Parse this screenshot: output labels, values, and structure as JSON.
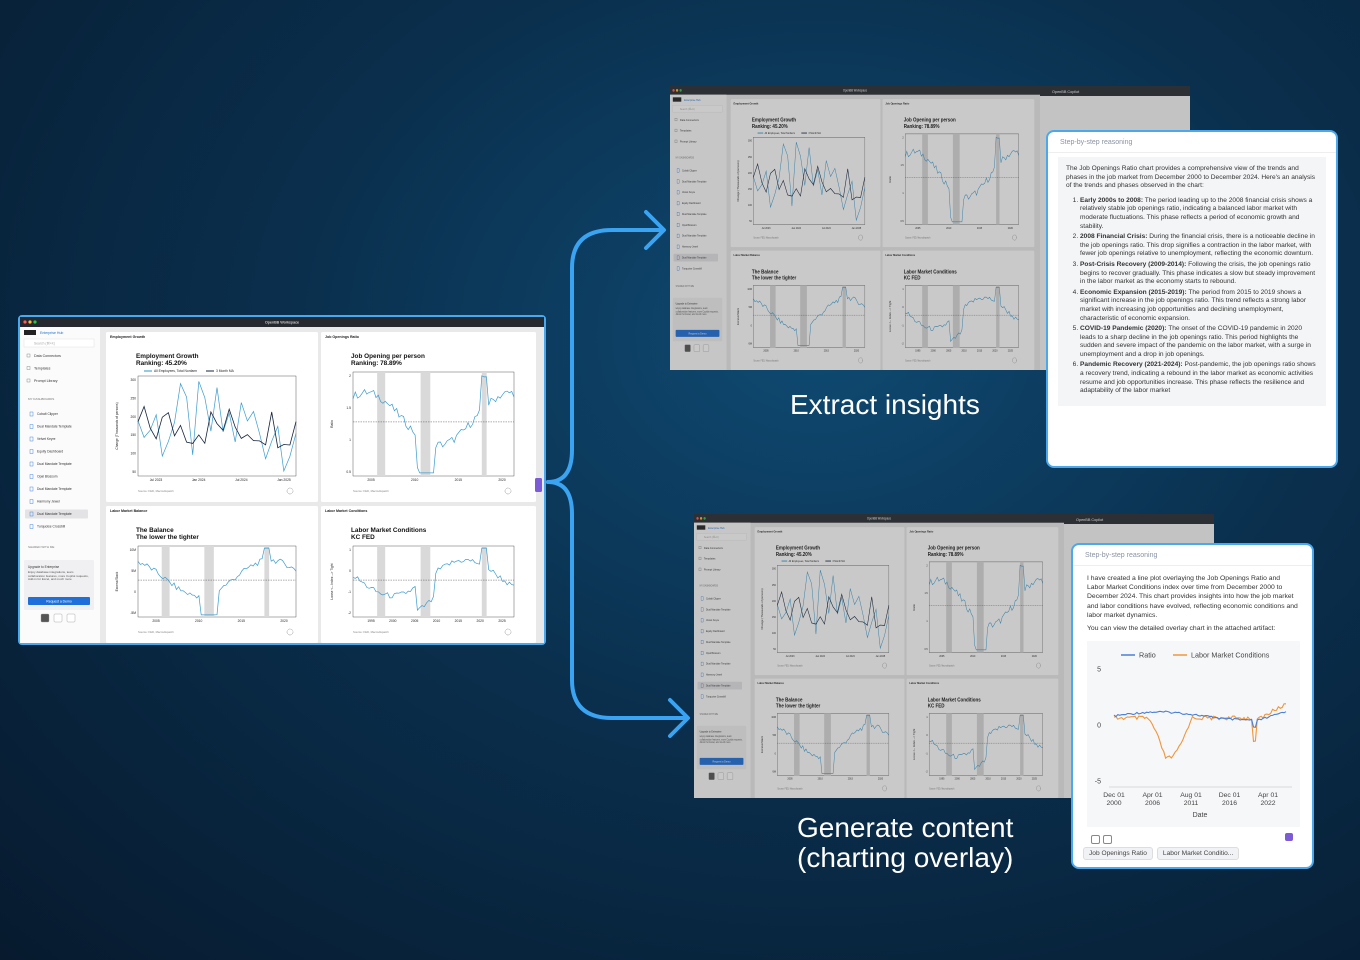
{
  "main_window": {
    "title": "OpenBB Workspace",
    "sidebar": {
      "workspace": "Enterprise Hub",
      "search": "Search (⌘+K)",
      "nav": [
        "Data Connectors",
        "Templates",
        "Prompt Library"
      ],
      "section": "MY DASHBOARDS",
      "dashboards": [
        "Cobalt Clipper",
        "Dual Mandate Template",
        "Velvet Keyre",
        "Equity Dashboard",
        "Dual Mandate Template",
        "Opal Blossom",
        "Dual Mandate Template",
        "Harmony Jewel",
        "Dual Mandate Template",
        "Turquoise Crossbill"
      ],
      "shared": "SHARED WITH ME",
      "upgrade_title": "Upgrade to Enterprise",
      "upgrade_text": "Enjoy database integrations, team collaboration features, more Copilot requests, Add-in for Excel, and much more",
      "button": "Request a Demo"
    },
    "widgets": [
      {
        "header": "Employment Growth",
        "title": "Employment Growth",
        "subtitle": "Ranking: 45.20%",
        "legend": [
          "All Employees, Total Nonfarm",
          "3 Month MA"
        ],
        "ylabel": "Change (Thousands of persons)",
        "xticks": [
          "Jul 2023",
          "Jan 2024",
          "Jul 2024",
          "Jan 2025"
        ],
        "yticks": [
          "300",
          "250",
          "200",
          "150",
          "100",
          "50"
        ],
        "source": "Source: FED, Macrodispatch"
      },
      {
        "header": "Job Openings Ratio",
        "title": "Job Opening per person",
        "subtitle": "Ranking: 78.89%",
        "ylabel": "Ratio",
        "xticks": [
          "2005",
          "2010",
          "2015",
          "2020"
        ],
        "yticks": [
          "2",
          "1.5",
          "1",
          "0.5"
        ],
        "source": "Source: FED, Macrodispatch"
      },
      {
        "header": "Labor Market Balance",
        "title": "The Balance",
        "subtitle": "The lower the tighter",
        "ylabel": "Excess/Slack",
        "xticks": [
          "2005",
          "2010",
          "2015",
          "2020"
        ],
        "yticks": [
          "10M",
          "5M",
          "0",
          "-5M"
        ],
        "source": "Source: FED, Macrodispatch"
      },
      {
        "header": "Labor Market Conditions",
        "title": "Labor Market Conditions",
        "subtitle": "KC FED",
        "ylabel": "Loose <-- Index --> Tight",
        "xticks": [
          "1995",
          "2000",
          "2005",
          "2010",
          "2015",
          "2020",
          "2025"
        ],
        "yticks": [
          "1",
          "0",
          "-1",
          "-2"
        ],
        "source": "Source: FED, Macrodispatch"
      }
    ]
  },
  "copilot": {
    "title": "OpenBB Copilot"
  },
  "insights_card": {
    "header": "Step-by-step reasoning",
    "intro": "The Job Openings Ratio chart provides a comprehensive view of the trends and phases in the job market from December 2000 to December 2024. Here's an analysis of the trends and phases observed in the chart:",
    "items": [
      {
        "title": "Early 2000s to 2008:",
        "text": "The period leading up to the 2008 financial crisis shows a relatively stable job openings ratio, indicating a balanced labor market with moderate fluctuations. This phase reflects a period of economic growth and stability."
      },
      {
        "title": "2008 Financial Crisis:",
        "text": "During the financial crisis, there is a noticeable decline in the job openings ratio. This drop signifies a contraction in the labor market, with fewer job openings relative to unemployment, reflecting the economic downturn."
      },
      {
        "title": "Post-Crisis Recovery (2009-2014):",
        "text": "Following the crisis, the job openings ratio begins to recover gradually. This phase indicates a slow but steady improvement in the labor market as the economy starts to rebound."
      },
      {
        "title": "Economic Expansion (2015-2019):",
        "text": "The period from 2015 to 2019 shows a significant increase in the job openings ratio. This trend reflects a strong labor market with increasing job opportunities and declining unemployment, characteristic of economic expansion."
      },
      {
        "title": "COVID-19 Pandemic (2020):",
        "text": "The onset of the COVID-19 pandemic in 2020 leads to a sharp decline in the job openings ratio. This period highlights the sudden and severe impact of the pandemic on the labor market, with a surge in unemployment and a drop in job openings."
      },
      {
        "title": "Pandemic Recovery (2021-2024):",
        "text": "Post-pandemic, the job openings ratio shows a recovery trend, indicating a rebound in the labor market as economic activities resume and job opportunities increase. This phase reflects the resilience and adaptability of the labor market"
      }
    ]
  },
  "overlay_card": {
    "header": "Step-by-step reasoning",
    "paragraphs": [
      "I have created a line plot overlaying the Job Openings Ratio and Labor Market Conditions index over time from December 2000 to December 2024. This chart provides insights into how the job market and labor conditions have evolved, reflecting economic conditions and labor market dynamics.",
      "You can view the detailed overlay chart in the attached artifact:"
    ],
    "legend": [
      "Ratio",
      "Labor Market Conditions"
    ],
    "yticks": [
      "5",
      "0",
      "-5"
    ],
    "xticks": [
      {
        "month": "Dec 01",
        "year": "2000"
      },
      {
        "month": "Apr 01",
        "year": "2006"
      },
      {
        "month": "Aug 01",
        "year": "2011"
      },
      {
        "month": "Dec 01",
        "year": "2016"
      },
      {
        "month": "Apr 01",
        "year": "2022"
      }
    ],
    "xlabel": "Date",
    "attachments": [
      "Job Openings Ratio",
      "Labor Market Conditio..."
    ]
  },
  "captions": {
    "insights": "Extract insights",
    "generate": "Generate content",
    "generate_sub": "(charting overlay)"
  }
}
